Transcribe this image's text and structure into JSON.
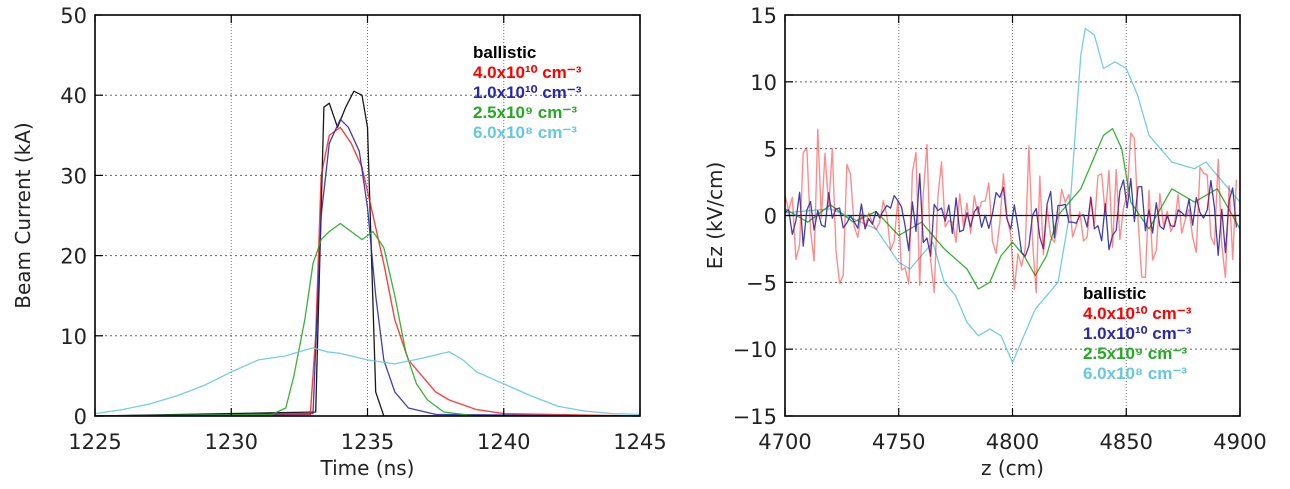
{
  "chart_data": [
    {
      "type": "line",
      "xlabel": "Time (ns)",
      "ylabel": "Beam Current (kA)",
      "xlim": [
        1225,
        1245
      ],
      "ylim": [
        0,
        50
      ],
      "xticks": [
        "1225",
        "1230",
        "1235",
        "1240",
        "1245"
      ],
      "yticks": [
        "0",
        "10",
        "20",
        "30",
        "40",
        "50"
      ],
      "grid": "dotted",
      "legend_position": "top-right",
      "legend": [
        {
          "label": "ballistic",
          "color": "#000000"
        },
        {
          "label": "4.0x10¹⁰ cm⁻³",
          "color": "#ff0000"
        },
        {
          "label": "1.0x10¹⁰ cm⁻³",
          "color": "#2a2aa8"
        },
        {
          "label": "2.5x10⁹ cm⁻³",
          "color": "#22aa22"
        },
        {
          "label": "6.0x10⁸ cm⁻³",
          "color": "#66c8e0"
        }
      ],
      "series": [
        {
          "name": "ballistic",
          "color": "#000000",
          "points": [
            [
              1225,
              0
            ],
            [
              1233.1,
              0.5
            ],
            [
              1233.4,
              38.5
            ],
            [
              1233.6,
              39
            ],
            [
              1233.9,
              36
            ],
            [
              1234.2,
              38.5
            ],
            [
              1234.5,
              40.5
            ],
            [
              1234.8,
              40
            ],
            [
              1235.0,
              36
            ],
            [
              1235.3,
              3
            ],
            [
              1235.6,
              0
            ],
            [
              1245,
              0
            ]
          ]
        },
        {
          "name": "4.0x10¹⁰ cm⁻³",
          "color": "#ff0000",
          "points": [
            [
              1225,
              0
            ],
            [
              1232.9,
              0.2
            ],
            [
              1233.1,
              10
            ],
            [
              1233.3,
              30
            ],
            [
              1233.6,
              35
            ],
            [
              1234.0,
              36
            ],
            [
              1234.4,
              34
            ],
            [
              1234.8,
              31
            ],
            [
              1235.2,
              25
            ],
            [
              1235.6,
              19
            ],
            [
              1236.0,
              12
            ],
            [
              1236.5,
              7
            ],
            [
              1237.0,
              5
            ],
            [
              1237.5,
              3
            ],
            [
              1238.0,
              2
            ],
            [
              1239.0,
              0.8
            ],
            [
              1240.0,
              0.3
            ],
            [
              1245,
              0
            ]
          ]
        },
        {
          "name": "1.0x10¹⁰ cm⁻³",
          "color": "#2a2aa8",
          "points": [
            [
              1225,
              0
            ],
            [
              1233.0,
              0.3
            ],
            [
              1233.3,
              25
            ],
            [
              1233.6,
              34
            ],
            [
              1234.0,
              37
            ],
            [
              1234.3,
              36
            ],
            [
              1234.7,
              33
            ],
            [
              1235.0,
              26
            ],
            [
              1235.3,
              15
            ],
            [
              1235.6,
              7
            ],
            [
              1236.0,
              3
            ],
            [
              1236.5,
              1
            ],
            [
              1237.5,
              0.2
            ],
            [
              1245,
              0
            ]
          ]
        },
        {
          "name": "2.5x10⁹ cm⁻³",
          "color": "#22aa22",
          "points": [
            [
              1225,
              0
            ],
            [
              1231.5,
              0.2
            ],
            [
              1232.0,
              1
            ],
            [
              1232.3,
              5
            ],
            [
              1232.7,
              12
            ],
            [
              1233.0,
              19
            ],
            [
              1233.3,
              22
            ],
            [
              1233.6,
              23
            ],
            [
              1234.0,
              24
            ],
            [
              1234.4,
              23
            ],
            [
              1234.8,
              22
            ],
            [
              1235.2,
              23
            ],
            [
              1235.6,
              21
            ],
            [
              1236.0,
              15
            ],
            [
              1236.4,
              8
            ],
            [
              1236.8,
              4
            ],
            [
              1237.2,
              2
            ],
            [
              1237.8,
              0.5
            ],
            [
              1239,
              0
            ],
            [
              1245,
              0
            ]
          ]
        },
        {
          "name": "6.0x10⁸ cm⁻³",
          "color": "#66c8e0",
          "points": [
            [
              1225,
              0.3
            ],
            [
              1226,
              0.8
            ],
            [
              1227,
              1.5
            ],
            [
              1228,
              2.5
            ],
            [
              1229,
              3.8
            ],
            [
              1230,
              5.5
            ],
            [
              1231,
              7
            ],
            [
              1232,
              7.5
            ],
            [
              1232.5,
              8
            ],
            [
              1233,
              8.5
            ],
            [
              1233.5,
              8
            ],
            [
              1234,
              7.8
            ],
            [
              1235,
              7
            ],
            [
              1236,
              6.5
            ],
            [
              1237,
              7.2
            ],
            [
              1238,
              8
            ],
            [
              1238.5,
              7
            ],
            [
              1239,
              5.5
            ],
            [
              1240,
              4
            ],
            [
              1241,
              2.5
            ],
            [
              1242,
              1.2
            ],
            [
              1243,
              0.6
            ],
            [
              1244,
              0.3
            ],
            [
              1245,
              0.2
            ]
          ]
        }
      ]
    },
    {
      "type": "line",
      "xlabel": "z (cm)",
      "ylabel": "Ez (kV/cm)",
      "xlim": [
        4700,
        4900
      ],
      "ylim": [
        -15,
        15
      ],
      "xticks": [
        "4700",
        "4750",
        "4800",
        "4850",
        "4900"
      ],
      "yticks": [
        "−15",
        "−10",
        "−5",
        "0",
        "5",
        "10",
        "15"
      ],
      "grid": "dotted",
      "legend_position": "bottom-right",
      "legend": [
        {
          "label": "ballistic",
          "color": "#000000"
        },
        {
          "label": "4.0x10¹⁰ cm⁻³",
          "color": "#ff0000"
        },
        {
          "label": "1.0x10¹⁰ cm⁻³",
          "color": "#2a2aa8"
        },
        {
          "label": "2.5x10⁹ cm⁻³",
          "color": "#22aa22"
        },
        {
          "label": "6.0x10⁸ cm⁻³",
          "color": "#66c8e0"
        }
      ],
      "series": [
        {
          "name": "ballistic",
          "color": "#000000",
          "points": [
            [
              4700,
              0
            ],
            [
              4900,
              0
            ]
          ]
        },
        {
          "name": "6.0x10⁸ cm⁻³",
          "color": "#66c8e0",
          "points": [
            [
              4700,
              0.2
            ],
            [
              4720,
              0.5
            ],
            [
              4740,
              -1
            ],
            [
              4750,
              -3.5
            ],
            [
              4755,
              -4
            ],
            [
              4765,
              -2
            ],
            [
              4770,
              -5
            ],
            [
              4775,
              -6
            ],
            [
              4780,
              -8
            ],
            [
              4785,
              -9
            ],
            [
              4790,
              -8.5
            ],
            [
              4795,
              -9
            ],
            [
              4800,
              -11
            ],
            [
              4805,
              -9
            ],
            [
              4810,
              -7
            ],
            [
              4820,
              -5
            ],
            [
              4825,
              0
            ],
            [
              4830,
              12
            ],
            [
              4832,
              14
            ],
            [
              4836,
              13.5
            ],
            [
              4840,
              11
            ],
            [
              4845,
              11.5
            ],
            [
              4850,
              11
            ],
            [
              4855,
              9
            ],
            [
              4860,
              6
            ],
            [
              4865,
              5
            ],
            [
              4870,
              4
            ],
            [
              4880,
              3.5
            ],
            [
              4885,
              4
            ],
            [
              4890,
              3
            ],
            [
              4900,
              1
            ]
          ]
        },
        {
          "name": "2.5x10⁹ cm⁻³",
          "color": "#22aa22",
          "points": [
            [
              4700,
              0.5
            ],
            [
              4710,
              -0.5
            ],
            [
              4720,
              0.8
            ],
            [
              4730,
              -0.5
            ],
            [
              4740,
              0.3
            ],
            [
              4750,
              -1.5
            ],
            [
              4760,
              -0.5
            ],
            [
              4770,
              -2.5
            ],
            [
              4780,
              -4
            ],
            [
              4785,
              -5.5
            ],
            [
              4790,
              -5
            ],
            [
              4795,
              -3
            ],
            [
              4800,
              -2
            ],
            [
              4805,
              -3
            ],
            [
              4810,
              -4.5
            ],
            [
              4815,
              -3
            ],
            [
              4820,
              0
            ],
            [
              4830,
              2
            ],
            [
              4840,
              6
            ],
            [
              4844,
              6.5
            ],
            [
              4848,
              5
            ],
            [
              4852,
              1
            ],
            [
              4860,
              -1
            ],
            [
              4870,
              2
            ],
            [
              4880,
              1
            ],
            [
              4890,
              2
            ],
            [
              4900,
              -1
            ]
          ]
        },
        {
          "name": "1.0x10¹⁰ cm⁻³",
          "color": "#2a2aa8",
          "noise": 1.3
        },
        {
          "name": "4.0x10¹⁰ cm⁻³",
          "color": "#ff0000",
          "noise": 2.6
        }
      ]
    }
  ]
}
